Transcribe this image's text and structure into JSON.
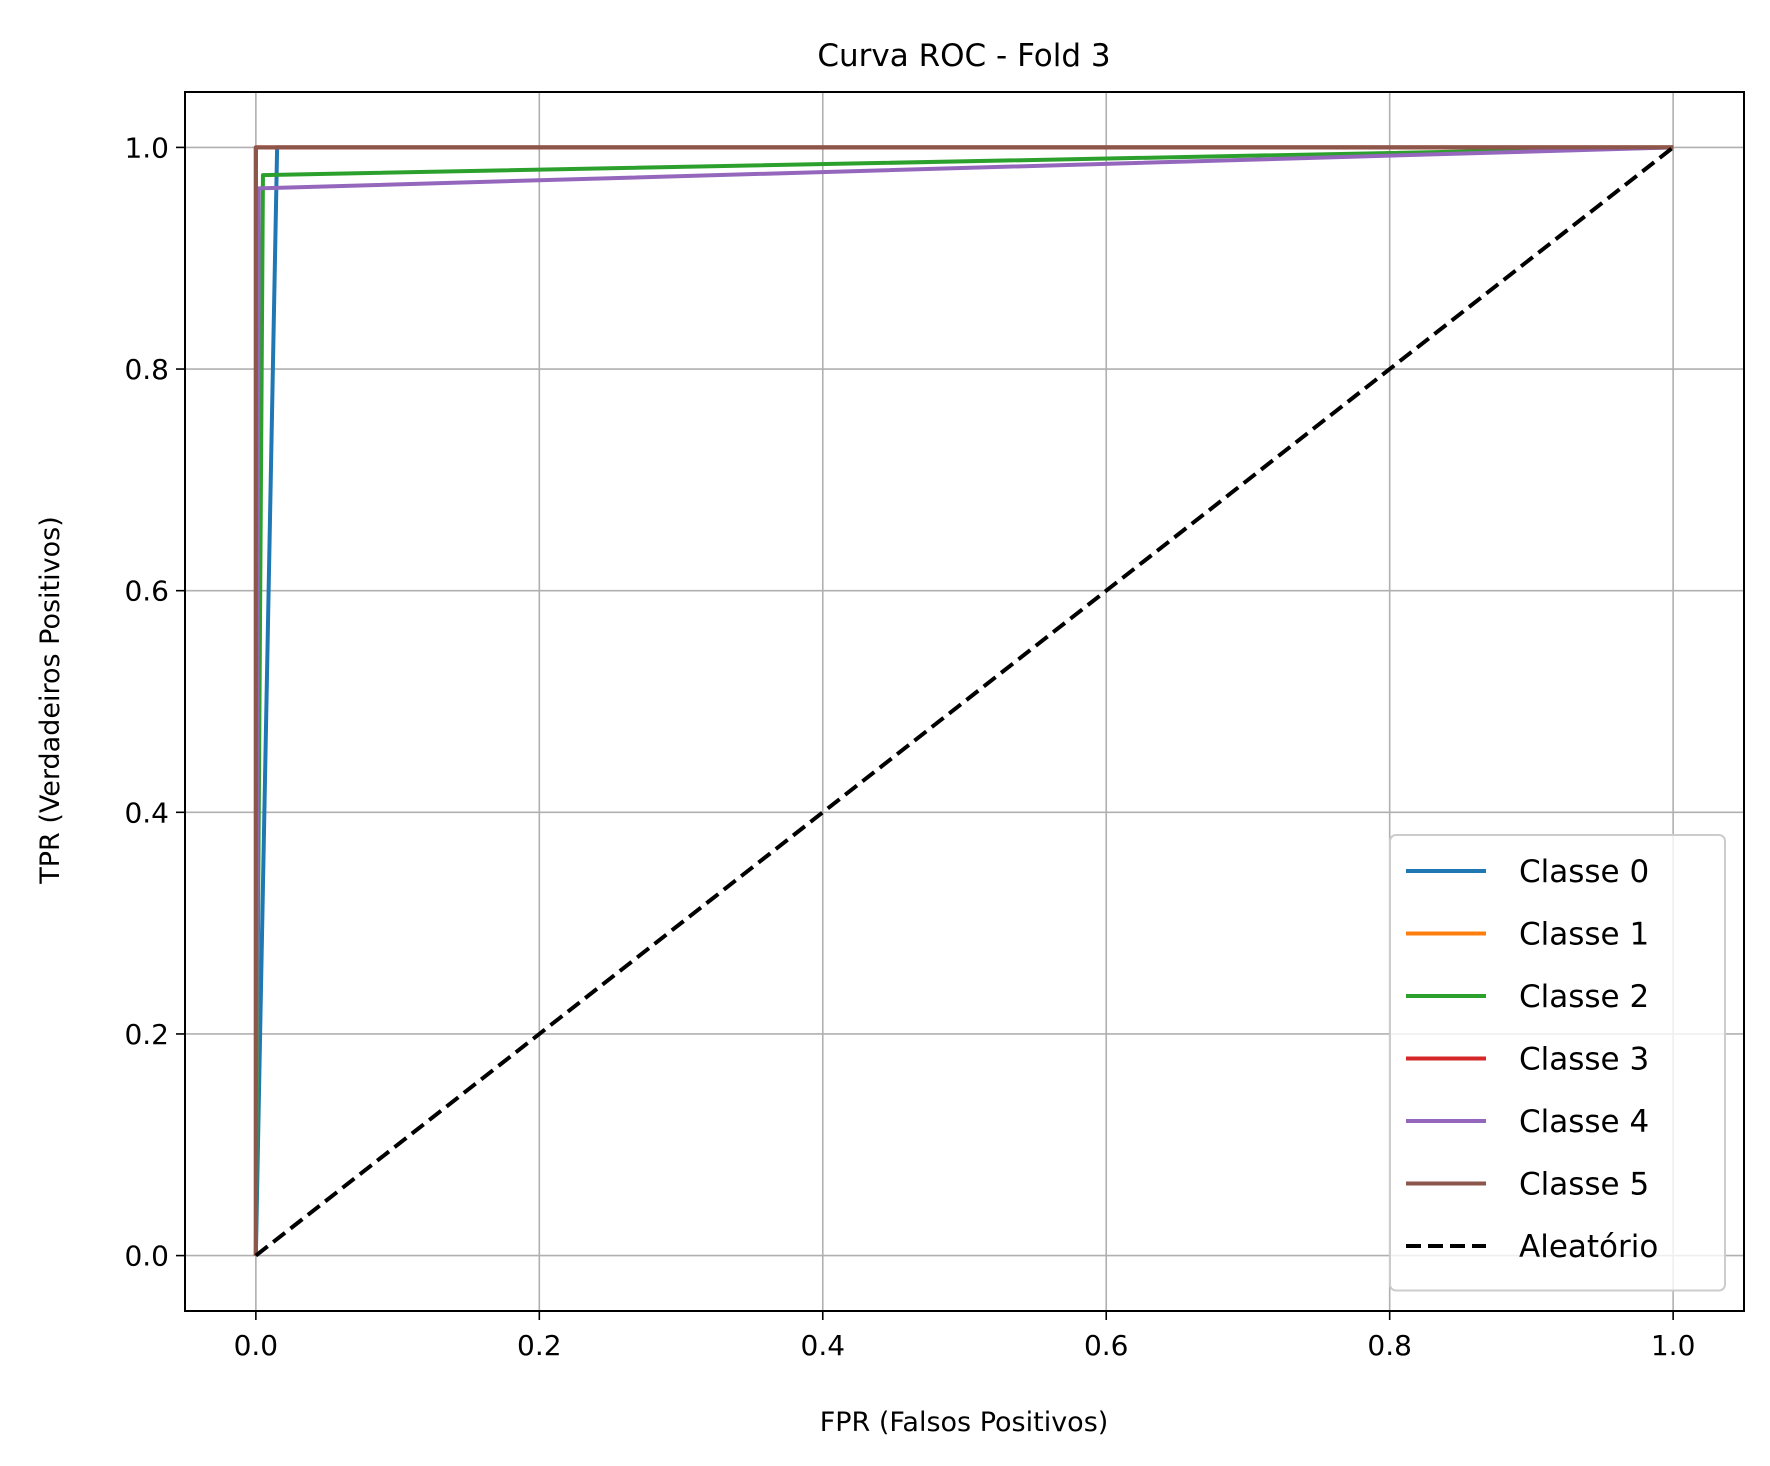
{
  "chart_data": {
    "type": "line",
    "title": "Curva ROC - Fold 3",
    "xlabel": "FPR (Falsos Positivos)",
    "ylabel": "TPR (Verdadeiros Positivos)",
    "xlim": [
      -0.05,
      1.05
    ],
    "ylim": [
      -0.05,
      1.05
    ],
    "xticks": [
      0.0,
      0.2,
      0.4,
      0.6,
      0.8,
      1.0
    ],
    "yticks": [
      0.0,
      0.2,
      0.4,
      0.6,
      0.8,
      1.0
    ],
    "xtick_labels": [
      "0.0",
      "0.2",
      "0.4",
      "0.6",
      "0.8",
      "1.0"
    ],
    "ytick_labels": [
      "0.0",
      "0.2",
      "0.4",
      "0.6",
      "0.8",
      "1.0"
    ],
    "grid": true,
    "legend_position": "lower-right",
    "series": [
      {
        "name": "Classe 0",
        "color": "#1f77b4",
        "dashed": false,
        "x": [
          0.0,
          0.015,
          1.0
        ],
        "y": [
          0.0,
          1.0,
          1.0
        ]
      },
      {
        "name": "Classe 1",
        "color": "#ff7f0e",
        "dashed": false,
        "x": [
          0.0,
          0.0,
          0.005,
          1.0
        ],
        "y": [
          0.0,
          1.0,
          1.0,
          1.0
        ]
      },
      {
        "name": "Classe 2",
        "color": "#2ca02c",
        "dashed": false,
        "x": [
          0.0,
          0.005,
          1.0
        ],
        "y": [
          0.0,
          0.975,
          1.0
        ]
      },
      {
        "name": "Classe 3",
        "color": "#d62728",
        "dashed": false,
        "x": [
          0.0,
          0.0,
          1.0
        ],
        "y": [
          0.0,
          1.0,
          1.0
        ]
      },
      {
        "name": "Classe 4",
        "color": "#9467bd",
        "dashed": false,
        "x": [
          0.0,
          0.002,
          1.0
        ],
        "y": [
          0.0,
          0.963,
          1.0
        ]
      },
      {
        "name": "Classe 5",
        "color": "#8c564b",
        "dashed": false,
        "x": [
          0.0,
          0.0,
          1.0
        ],
        "y": [
          0.0,
          1.0,
          1.0
        ]
      },
      {
        "name": "Aleatório",
        "color": "#000000",
        "dashed": true,
        "x": [
          0.0,
          1.0
        ],
        "y": [
          0.0,
          1.0
        ]
      }
    ]
  }
}
